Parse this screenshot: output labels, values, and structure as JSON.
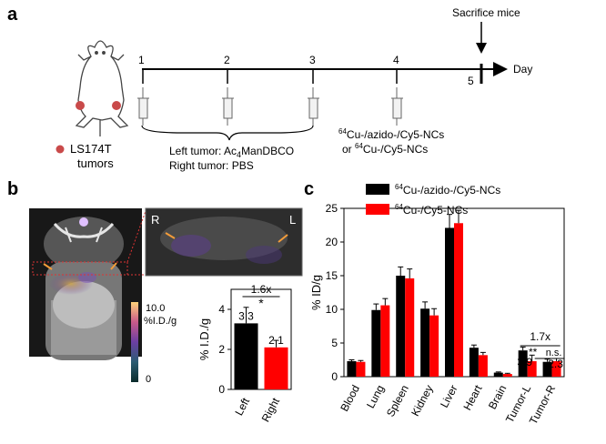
{
  "panel_a": {
    "label": "a",
    "timeline_days": [
      "1",
      "2",
      "3",
      "4",
      "5"
    ],
    "axis_label": "Day",
    "sacrifice_label": "Sacrifice mice",
    "legend_text": "LS174T tumors",
    "legend_line1": "LS174T",
    "legend_line2": "tumors",
    "treatment_left_prefix": "Left tumor: Ac",
    "treatment_left_sub": "4",
    "treatment_left_suffix": "ManDBCO",
    "treatment_right": "Right tumor: PBS",
    "injection_line1_sup": "64",
    "injection_line1_text": "Cu-/azido-/Cy5-NCs",
    "injection_line2_prefix": "or ",
    "injection_line2_sup": "64",
    "injection_line2_text": "Cu-/Cy5-NCs"
  },
  "panel_b": {
    "label": "b",
    "colorbar_max": "10.0",
    "colorbar_unit": "%I.D./g",
    "colorbar_min": "0",
    "inset_left_marker": "R",
    "inset_right_marker": "L",
    "colors": {
      "left_bar": "#000000",
      "right_bar": "#ff0000"
    }
  },
  "panel_c": {
    "label": "c",
    "colors": {
      "series1": "#000000",
      "series2": "#ff0000"
    }
  },
  "chart_data": [
    {
      "type": "bar",
      "categories": [
        "Left",
        "Right"
      ],
      "values": [
        3.3,
        2.1
      ],
      "errors": [
        0.8,
        0.35
      ],
      "value_labels": [
        "3.3",
        "2.1"
      ],
      "ylabel": "% I.D./g",
      "ylim": [
        0,
        5
      ],
      "yticks": [
        "0",
        "2",
        "4"
      ],
      "annotation_fold": "1.6x",
      "annotation_sig": "*"
    },
    {
      "type": "bar",
      "categories": [
        "Blood",
        "Lung",
        "Spleen",
        "Kidney",
        "Liver",
        "Heart",
        "Brain",
        "Tumor-L",
        "Tumor-R"
      ],
      "series": [
        {
          "sup": "64",
          "label": "Cu-/azido-/Cy5-NCs",
          "values": [
            2.3,
            9.9,
            15.0,
            10.1,
            22.1,
            4.3,
            0.6,
            3.9,
            2.2
          ],
          "errors": [
            0.2,
            0.9,
            1.3,
            1.0,
            2.0,
            0.4,
            0.1,
            0.5,
            0.4
          ]
        },
        {
          "sup": "64",
          "label": "Cu-/Cy5-NCs",
          "values": [
            2.2,
            10.6,
            14.6,
            9.1,
            22.8,
            3.2,
            0.4,
            2.3,
            2.3
          ],
          "errors": [
            0.2,
            1.0,
            1.4,
            1.0,
            1.9,
            0.4,
            0.1,
            0.9,
            0.4
          ]
        }
      ],
      "ylabel": "% ID/g",
      "ylim": [
        0,
        25
      ],
      "yticks": [
        "0",
        "5",
        "10",
        "15",
        "20",
        "25"
      ],
      "annotation_fold": "1.7x",
      "annotation_sig_a": "**",
      "annotation_sig_b": "n.s.",
      "annotation_value_a": "3.9",
      "annotation_value_b": "2.3"
    }
  ]
}
